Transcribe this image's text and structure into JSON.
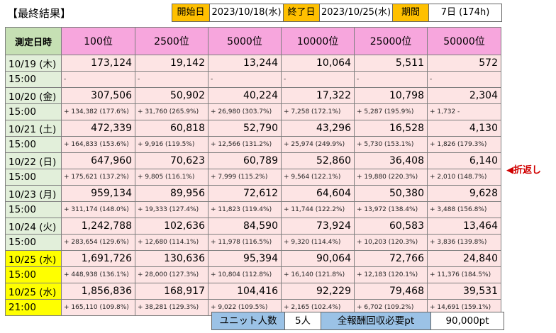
{
  "title": "【最終結果】",
  "header": {
    "start_label": "開始日",
    "start_value": "2023/10/18(水)",
    "end_label": "終了日",
    "end_value": "2023/10/25(水)",
    "period_label": "期間",
    "period_value": "7日 (174h)"
  },
  "table": {
    "corner_label": "測定日時",
    "columns": [
      "100位",
      "2500位",
      "5000位",
      "10000位",
      "25000位",
      "50000位"
    ],
    "rows": [
      {
        "date": "10/19 (木)",
        "time": "15:00",
        "values": [
          "173,124",
          "19,142",
          "13,244",
          "10,064",
          "5,511",
          "572"
        ],
        "deltas": [
          "-",
          "-",
          "-",
          "-",
          "-",
          "-"
        ]
      },
      {
        "date": "10/20 (金)",
        "time": "15:00",
        "values": [
          "307,506",
          "50,902",
          "40,224",
          "17,322",
          "10,798",
          "2,304"
        ],
        "deltas": [
          "+ 134,382 (177.6%)",
          "+ 31,760 (265.9%)",
          "+ 26,980 (303.7%)",
          "+ 7,258 (172.1%)",
          "+ 5,287 (195.9%)",
          "+ 1,732 -"
        ]
      },
      {
        "date": "10/21 (土)",
        "time": "15:00",
        "values": [
          "472,339",
          "60,818",
          "52,790",
          "43,296",
          "16,528",
          "4,130"
        ],
        "deltas": [
          "+ 164,833 (153.6%)",
          "+ 9,916 (119.5%)",
          "+ 12,566 (131.2%)",
          "+ 25,974 (249.9%)",
          "+ 5,730 (153.1%)",
          "+ 1,826 (179.3%)"
        ]
      },
      {
        "date": "10/22 (日)",
        "time": "15:00",
        "values": [
          "647,960",
          "70,623",
          "60,789",
          "52,860",
          "36,408",
          "6,140"
        ],
        "deltas": [
          "+ 175,621 (137.2%)",
          "+ 9,805 (116.1%)",
          "+ 7,999 (115.2%)",
          "+ 9,564 (122.1%)",
          "+ 19,880 (220.3%)",
          "+ 2,010 (148.7%)"
        ]
      },
      {
        "date": "10/23 (月)",
        "time": "15:00",
        "values": [
          "959,134",
          "89,956",
          "72,612",
          "64,604",
          "50,380",
          "9,628"
        ],
        "deltas": [
          "+ 311,174 (148.0%)",
          "+ 19,333 (127.4%)",
          "+ 11,823 (119.4%)",
          "+ 11,744 (122.2%)",
          "+ 13,972 (138.4%)",
          "+ 3,488 (156.8%)"
        ]
      },
      {
        "date": "10/24 (火)",
        "time": "15:00",
        "values": [
          "1,242,788",
          "102,636",
          "84,590",
          "73,924",
          "60,583",
          "13,464"
        ],
        "deltas": [
          "+ 283,654 (129.6%)",
          "+ 12,680 (114.1%)",
          "+ 11,978 (116.5%)",
          "+ 9,320 (114.4%)",
          "+ 10,203 (120.3%)",
          "+ 3,836 (139.8%)"
        ]
      },
      {
        "date": "10/25 (水)",
        "time": "15:00",
        "values": [
          "1,691,726",
          "130,636",
          "95,394",
          "90,064",
          "72,766",
          "24,840"
        ],
        "deltas": [
          "+ 448,938 (136.1%)",
          "+ 28,000 (127.3%)",
          "+ 10,804 (112.8%)",
          "+ 16,140 (121.8%)",
          "+ 12,183 (120.1%)",
          "+ 11,376 (184.5%)"
        ]
      },
      {
        "date": "10/25 (水)",
        "time": "21:00",
        "values": [
          "1,856,836",
          "168,917",
          "104,416",
          "92,229",
          "79,468",
          "39,531"
        ],
        "deltas": [
          "+ 165,110 (109.8%)",
          "+ 38,281 (129.3%)",
          "+ 9,022 (109.5%)",
          "+ 2,165 (102.4%)",
          "+ 6,702 (109.2%)",
          "+ 14,691 (159.1%)"
        ]
      }
    ]
  },
  "note": "◀折返し",
  "footer": {
    "unit_label": "ユニット人数",
    "unit_value": "5人",
    "reward_label": "全報酬回収必要pt",
    "reward_value": "90,000pt"
  },
  "colors": {
    "header_orange": "#ffc000",
    "column_header_pink": "#f7a6dd",
    "corner_green": "#c6e0b4",
    "cell_pink": "#fde4e4",
    "date_green": "#e2efda",
    "date_yellow": "#ffff00",
    "footer_blue": "#9bc2e6",
    "note_red": "#d00000"
  }
}
